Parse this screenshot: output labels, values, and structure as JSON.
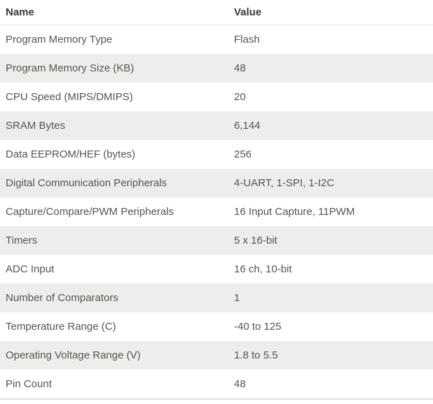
{
  "table": {
    "headers": [
      "Name",
      "Value"
    ],
    "rows": [
      {
        "name": "Program Memory Type",
        "value": "Flash"
      },
      {
        "name": "Program Memory Size (KB)",
        "value": "48"
      },
      {
        "name": "CPU Speed (MIPS/DMIPS)",
        "value": "20"
      },
      {
        "name": "SRAM Bytes",
        "value": "6,144"
      },
      {
        "name": "Data EEPROM/HEF (bytes)",
        "value": "256"
      },
      {
        "name": "Digital Communication Peripherals",
        "value": "4-UART, 1-SPI, 1-I2C"
      },
      {
        "name": "Capture/Compare/PWM Peripherals",
        "value": "16 Input Capture, 11PWM"
      },
      {
        "name": "Timers",
        "value": "5 x 16-bit"
      },
      {
        "name": "ADC Input",
        "value": "16 ch, 10-bit"
      },
      {
        "name": "Number of Comparators",
        "value": "1"
      },
      {
        "name": "Temperature Range (C)",
        "value": "-40 to 125"
      },
      {
        "name": "Operating Voltage Range (V)",
        "value": "1.8 to 5.5"
      },
      {
        "name": "Pin Count",
        "value": "48"
      }
    ]
  },
  "colors": {
    "stripe_background": "#eceeeb",
    "header_text": "#3a3a3c",
    "cell_text": "#55564f",
    "header_border": "#e0e5e2",
    "table_bottom_border": "#dbe1de"
  }
}
